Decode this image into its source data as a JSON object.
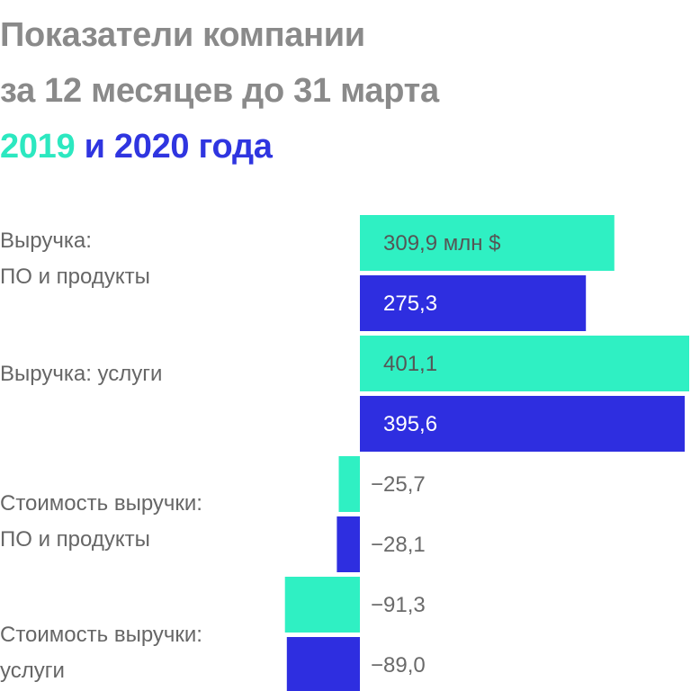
{
  "title": {
    "line1": "Показатели компании",
    "line2": "за 12 месяцев до 31 марта",
    "year1": "2019",
    "conj": " и ",
    "year2": "2020 года"
  },
  "colors": {
    "2019": "#2ff0c3",
    "2020": "#2e2ee0",
    "title_gray": "#8a8a8a",
    "label_gray": "#666666"
  },
  "categories": [
    {
      "lines": [
        "Выручка:",
        "ПО и продукты"
      ]
    },
    {
      "lines": [
        "Выручка: услуги"
      ]
    },
    {
      "lines": [
        "Стоимость выручки:",
        "ПО и продукты"
      ]
    },
    {
      "lines": [
        "Стоимость выручки:",
        "услуги"
      ]
    }
  ],
  "chart_data": {
    "type": "bar",
    "orientation": "horizontal",
    "categories": [
      "Выручка: ПО и продукты",
      "Выручка: услуги",
      "Стоимость выручки: ПО и продукты",
      "Стоимость выручки: услуги"
    ],
    "series": [
      {
        "key": "2019",
        "values": [
          309.9,
          401.1,
          -25.7,
          -91.3
        ]
      },
      {
        "key": "2020",
        "values": [
          275.3,
          395.6,
          -28.1,
          -89.0
        ]
      }
    ],
    "data_labels": [
      [
        "309,9 млн $",
        "275,3"
      ],
      [
        "401,1",
        "395,6"
      ],
      [
        "−25,7",
        "−28,1"
      ],
      [
        "−91,3",
        "−89,0"
      ]
    ]
  }
}
